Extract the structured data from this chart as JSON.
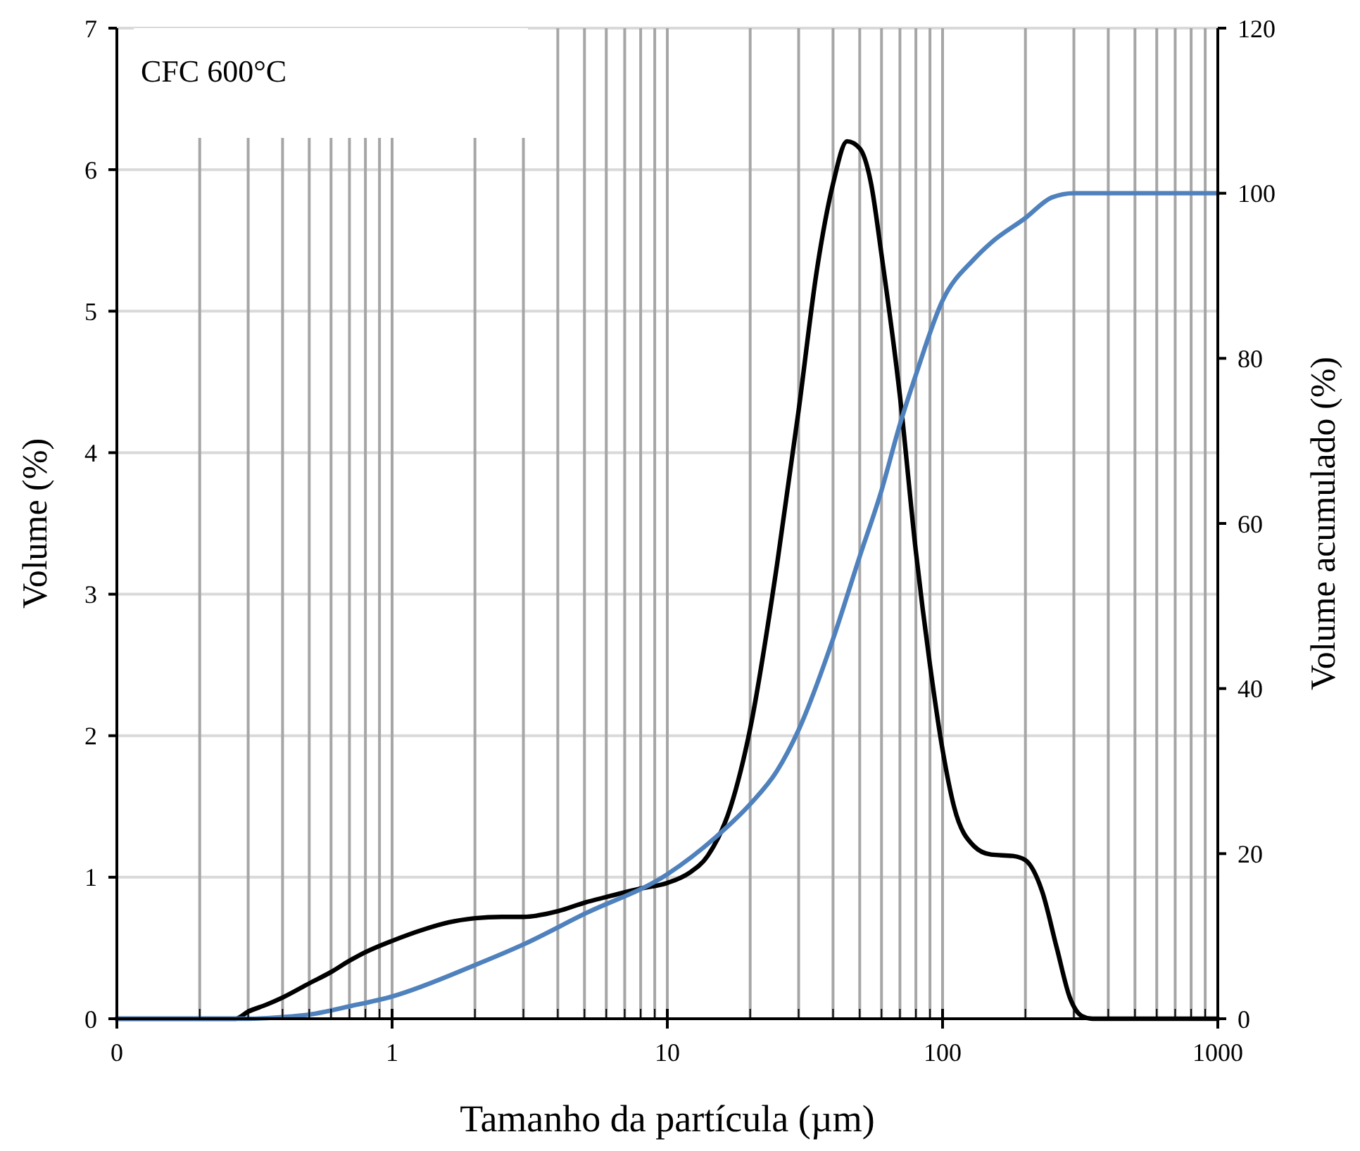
{
  "chart_data": {
    "type": "line",
    "xlabel": "Tamanho da partícula (µm)",
    "ylabel": "Volume (%)",
    "y2label": "Volume acumulado (%)",
    "annotations": [
      "CFC 600°C"
    ],
    "log": "x",
    "grid": true,
    "line_style": "solid",
    "xlim": [
      0.1,
      1000
    ],
    "xticks": [
      {
        "value": 0.1,
        "label": "0"
      },
      {
        "value": 0.2,
        "label": null
      },
      {
        "value": 0.3,
        "label": null
      },
      {
        "value": 0.4,
        "label": null
      },
      {
        "value": 0.5,
        "label": null
      },
      {
        "value": 0.6,
        "label": null
      },
      {
        "value": 0.7,
        "label": null
      },
      {
        "value": 0.8,
        "label": null
      },
      {
        "value": 0.9,
        "label": null
      },
      1,
      {
        "value": 2,
        "label": null
      },
      {
        "value": 3,
        "label": null
      },
      {
        "value": 4,
        "label": null
      },
      {
        "value": 5,
        "label": null
      },
      {
        "value": 6,
        "label": null
      },
      {
        "value": 7,
        "label": null
      },
      {
        "value": 8,
        "label": null
      },
      {
        "value": 9,
        "label": null
      },
      10,
      {
        "value": 20,
        "label": null
      },
      {
        "value": 30,
        "label": null
      },
      {
        "value": 40,
        "label": null
      },
      {
        "value": 50,
        "label": null
      },
      {
        "value": 60,
        "label": null
      },
      {
        "value": 70,
        "label": null
      },
      {
        "value": 80,
        "label": null
      },
      {
        "value": 90,
        "label": null
      },
      100,
      {
        "value": 200,
        "label": null
      },
      {
        "value": 300,
        "label": null
      },
      {
        "value": 400,
        "label": null
      },
      {
        "value": 500,
        "label": null
      },
      {
        "value": 600,
        "label": null
      },
      {
        "value": 700,
        "label": null
      },
      {
        "value": 800,
        "label": null
      },
      {
        "value": 900,
        "label": null
      },
      1000
    ],
    "ylim": [
      0,
      7
    ],
    "yticks": [
      0,
      1,
      2,
      3,
      4,
      5,
      6,
      7
    ],
    "y2lim": [
      0,
      120
    ],
    "y2ticks": [
      0,
      20,
      40,
      60,
      80,
      100,
      120
    ],
    "series": [
      {
        "color": "#000000",
        "x": [
          0.1,
          0.2,
          0.27,
          0.3,
          0.35,
          0.4,
          0.5,
          0.6,
          0.7,
          0.8,
          1,
          1.3,
          1.6,
          2,
          2.5,
          3,
          4,
          5,
          6,
          8,
          10,
          12,
          14,
          17,
          20,
          25,
          30,
          35,
          40,
          45,
          50,
          55,
          60,
          70,
          80,
          90,
          100,
          110,
          130,
          150,
          180,
          200,
          230,
          260,
          290,
          320,
          350,
          1000
        ],
        "values": [
          0,
          0,
          0,
          0.05,
          0.1,
          0.15,
          0.25,
          0.33,
          0.41,
          0.47,
          0.55,
          0.63,
          0.68,
          0.71,
          0.72,
          0.72,
          0.76,
          0.82,
          0.86,
          0.92,
          0.96,
          1.03,
          1.15,
          1.5,
          2.05,
          3.2,
          4.3,
          5.3,
          5.9,
          6.2,
          6.15,
          5.9,
          5.4,
          4.4,
          3.3,
          2.5,
          1.9,
          1.5,
          1.22,
          1.16,
          1.15,
          1.12,
          0.9,
          0.5,
          0.15,
          0.02,
          0,
          0
        ]
      },
      {
        "color": "#4f81bd",
        "axis": "y2",
        "x": [
          0.1,
          0.3,
          0.4,
          0.5,
          0.7,
          1,
          2,
          3,
          5,
          10,
          15,
          20,
          25,
          30,
          40,
          50,
          60,
          70,
          80,
          100,
          130,
          150,
          200,
          250,
          300,
          1000
        ],
        "values": [
          0,
          0,
          0.2,
          0.5,
          1.5,
          2.7,
          6.5,
          9,
          12.7,
          17.5,
          22,
          26,
          30,
          35,
          46,
          56,
          64,
          72,
          78,
          87,
          92,
          94,
          97,
          99.5,
          100,
          100
        ]
      }
    ]
  }
}
